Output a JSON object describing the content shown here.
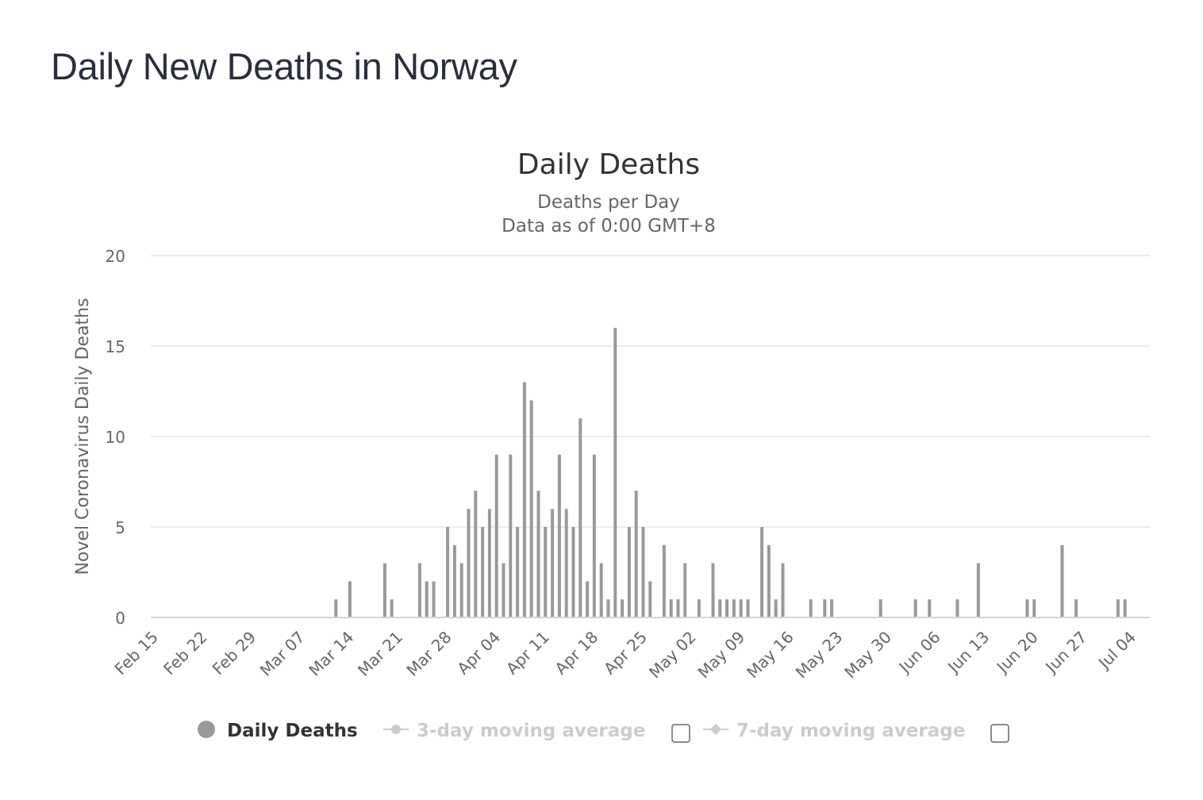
{
  "page": {
    "title": "Daily New Deaths in Norway"
  },
  "chart_data": {
    "type": "bar",
    "title": "Daily Deaths",
    "subtitle_lines": [
      "Deaths per Day",
      "Data as of 0:00 GMT+8"
    ],
    "xlabel": "",
    "ylabel": "Novel Coronavirus Daily Deaths",
    "ylim": [
      0,
      20
    ],
    "yticks": [
      0,
      5,
      10,
      15,
      20
    ],
    "grid": true,
    "legend_position": "bottom",
    "x_tick_labels": [
      "Feb 15",
      "Feb 22",
      "Feb 29",
      "Mar 07",
      "Mar 14",
      "Mar 21",
      "Mar 28",
      "Apr 04",
      "Apr 11",
      "Apr 18",
      "Apr 25",
      "May 02",
      "May 09",
      "May 16",
      "May 23",
      "May 30",
      "Jun 06",
      "Jun 13",
      "Jun 20",
      "Jun 27",
      "Jul 04"
    ],
    "categories": [
      "Feb 15",
      "Feb 16",
      "Feb 17",
      "Feb 18",
      "Feb 19",
      "Feb 20",
      "Feb 21",
      "Feb 22",
      "Feb 23",
      "Feb 24",
      "Feb 25",
      "Feb 26",
      "Feb 27",
      "Feb 28",
      "Feb 29",
      "Mar 01",
      "Mar 02",
      "Mar 03",
      "Mar 04",
      "Mar 05",
      "Mar 06",
      "Mar 07",
      "Mar 08",
      "Mar 09",
      "Mar 10",
      "Mar 11",
      "Mar 12",
      "Mar 13",
      "Mar 14",
      "Mar 15",
      "Mar 16",
      "Mar 17",
      "Mar 18",
      "Mar 19",
      "Mar 20",
      "Mar 21",
      "Mar 22",
      "Mar 23",
      "Mar 24",
      "Mar 25",
      "Mar 26",
      "Mar 27",
      "Mar 28",
      "Mar 29",
      "Mar 30",
      "Mar 31",
      "Apr 01",
      "Apr 02",
      "Apr 03",
      "Apr 04",
      "Apr 05",
      "Apr 06",
      "Apr 07",
      "Apr 08",
      "Apr 09",
      "Apr 10",
      "Apr 11",
      "Apr 12",
      "Apr 13",
      "Apr 14",
      "Apr 15",
      "Apr 16",
      "Apr 17",
      "Apr 18",
      "Apr 19",
      "Apr 20",
      "Apr 21",
      "Apr 22",
      "Apr 23",
      "Apr 24",
      "Apr 25",
      "Apr 26",
      "Apr 27",
      "Apr 28",
      "Apr 29",
      "Apr 30",
      "May 01",
      "May 02",
      "May 03",
      "May 04",
      "May 05",
      "May 06",
      "May 07",
      "May 08",
      "May 09",
      "May 10",
      "May 11",
      "May 12",
      "May 13",
      "May 14",
      "May 15",
      "May 16",
      "May 17",
      "May 18",
      "May 19",
      "May 20",
      "May 21",
      "May 22",
      "May 23",
      "May 24",
      "May 25",
      "May 26",
      "May 27",
      "May 28",
      "May 29",
      "May 30",
      "May 31",
      "Jun 01",
      "Jun 02",
      "Jun 03",
      "Jun 04",
      "Jun 05",
      "Jun 06",
      "Jun 07",
      "Jun 08",
      "Jun 09",
      "Jun 10",
      "Jun 11",
      "Jun 12",
      "Jun 13",
      "Jun 14",
      "Jun 15",
      "Jun 16",
      "Jun 17",
      "Jun 18",
      "Jun 19",
      "Jun 20",
      "Jun 21",
      "Jun 22",
      "Jun 23",
      "Jun 24",
      "Jun 25",
      "Jun 26",
      "Jun 27",
      "Jun 28",
      "Jun 29",
      "Jun 30",
      "Jul 01",
      "Jul 02",
      "Jul 03",
      "Jul 04"
    ],
    "series": [
      {
        "name": "Daily Deaths",
        "color": "#999999",
        "values": [
          0,
          0,
          0,
          0,
          0,
          0,
          0,
          0,
          0,
          0,
          0,
          0,
          0,
          0,
          0,
          0,
          0,
          0,
          0,
          0,
          0,
          0,
          0,
          0,
          0,
          0,
          1,
          0,
          2,
          0,
          0,
          0,
          0,
          3,
          1,
          0,
          0,
          0,
          3,
          2,
          2,
          0,
          5,
          4,
          3,
          6,
          7,
          5,
          6,
          9,
          3,
          9,
          5,
          13,
          12,
          7,
          5,
          6,
          9,
          6,
          5,
          11,
          2,
          9,
          3,
          1,
          16,
          1,
          5,
          7,
          5,
          2,
          0,
          4,
          1,
          1,
          3,
          0,
          1,
          0,
          3,
          1,
          1,
          1,
          1,
          1,
          0,
          5,
          4,
          1,
          3,
          0,
          0,
          0,
          1,
          0,
          1,
          1,
          0,
          0,
          0,
          0,
          0,
          0,
          1,
          0,
          0,
          0,
          0,
          1,
          0,
          1,
          0,
          0,
          0,
          1,
          0,
          0,
          3,
          0,
          0,
          0,
          0,
          0,
          0,
          1,
          1,
          0,
          0,
          0,
          4,
          0,
          1,
          0,
          0,
          0,
          0,
          0,
          1,
          1,
          0
        ]
      },
      {
        "name": "3-day moving average",
        "color": "#cccccc",
        "visible": false
      },
      {
        "name": "7-day moving average",
        "color": "#cccccc",
        "visible": false
      }
    ]
  },
  "legend": {
    "items": [
      {
        "label": "Daily Deaths",
        "active": true,
        "icon": "circle-icon"
      },
      {
        "label": "3-day moving average",
        "active": false,
        "icon": "line-circle-icon"
      },
      {
        "label": "7-day moving average",
        "active": false,
        "icon": "line-diamond-icon"
      }
    ]
  },
  "colors": {
    "bar": "#999999",
    "grid": "#e6e6e6",
    "axis": "#ccd6eb",
    "legend_active": "#333333",
    "legend_inactive": "#cccccc"
  }
}
